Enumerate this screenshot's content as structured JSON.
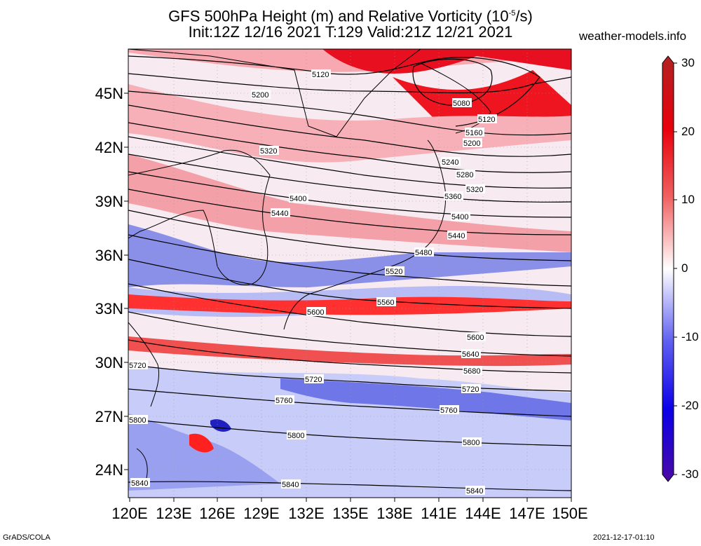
{
  "title": {
    "line1": "GFS 500hPa Height (m) and Relative Vorticity (10",
    "line1_exp": "-5",
    "line1_tail": "/s)",
    "line2": "Init:12Z 12/16 2021 T:129 Valid:21Z 12/21 2021"
  },
  "site": "weather-models.info",
  "footer": {
    "left": "GrADS/COLA",
    "right": "2021-12-17-01:10"
  },
  "lat_labels": [
    "45N",
    "42N",
    "39N",
    "36N",
    "33N",
    "30N",
    "27N",
    "24N"
  ],
  "lon_labels": [
    "120E",
    "123E",
    "126E",
    "129E",
    "132E",
    "135E",
    "138E",
    "141E",
    "144E",
    "147E",
    "150E"
  ],
  "colorbar": {
    "labels": [
      "30",
      "20",
      "10",
      "0",
      "-10",
      "-20",
      "-30"
    ],
    "colors": [
      "#b22222",
      "#e8000b",
      "#ff4040",
      "#f08080",
      "#fcd5d5",
      "#ffffff",
      "#d5d5fc",
      "#8080f0",
      "#4040ff",
      "#0b00e8",
      "#4b0aa6"
    ]
  },
  "contours": [
    {
      "label": "5080"
    },
    {
      "label": "5120"
    },
    {
      "label": "5160"
    },
    {
      "label": "5200"
    },
    {
      "label": "5240"
    },
    {
      "label": "5280"
    },
    {
      "label": "5320"
    },
    {
      "label": "5360"
    },
    {
      "label": "5400"
    },
    {
      "label": "5440"
    },
    {
      "label": "5480"
    },
    {
      "label": "5520"
    },
    {
      "label": "5560"
    },
    {
      "label": "5600"
    },
    {
      "label": "5640"
    },
    {
      "label": "5680"
    },
    {
      "label": "5720"
    },
    {
      "label": "5760"
    },
    {
      "label": "5800"
    },
    {
      "label": "5840"
    }
  ],
  "extra_labels": [
    "5120",
    "5200",
    "5320",
    "5400",
    "5440",
    "5600",
    "5720",
    "5720",
    "5760",
    "5800",
    "5800",
    "5840",
    "5840"
  ]
}
